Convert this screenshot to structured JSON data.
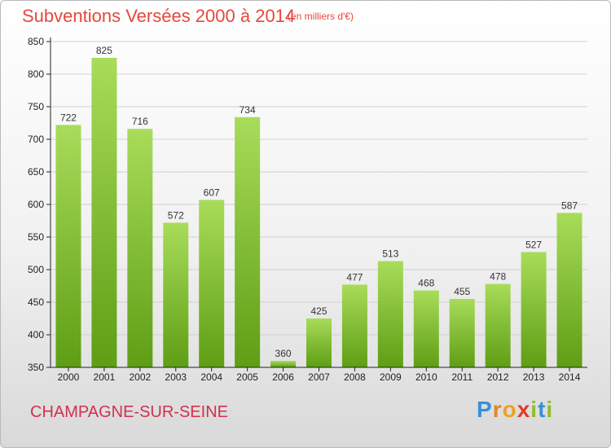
{
  "title": "Subventions Versées 2000 à 2014",
  "subtitle": "(en milliers d'€)",
  "city": "CHAMPAGNE-SUR-SEINE",
  "brand": {
    "letters": [
      "P",
      "r",
      "o",
      "x",
      "i",
      "t",
      "i"
    ],
    "colors": [
      "#3a8fd6",
      "#e0862a",
      "#f0a020",
      "#e23a2a",
      "#8cbf2a",
      "#3a8fd6",
      "#8cbf2a"
    ]
  },
  "colors": {
    "bar_light": "#a8dc5a",
    "bar_dark": "#5e9e14",
    "grid": "#d0d0d0",
    "axis": "#222222",
    "title": "#e8473b",
    "city": "#d2304f"
  },
  "chart_data": {
    "type": "bar",
    "categories": [
      "2000",
      "2001",
      "2002",
      "2003",
      "2004",
      "2005",
      "2006",
      "2007",
      "2008",
      "2009",
      "2010",
      "2011",
      "2012",
      "2013",
      "2014"
    ],
    "values": [
      722,
      825,
      716,
      572,
      607,
      734,
      360,
      425,
      477,
      513,
      468,
      455,
      478,
      527,
      587
    ],
    "ylim": [
      350,
      850
    ],
    "yticks": [
      350,
      400,
      450,
      500,
      550,
      600,
      650,
      700,
      750,
      800,
      850
    ],
    "grid": true
  }
}
